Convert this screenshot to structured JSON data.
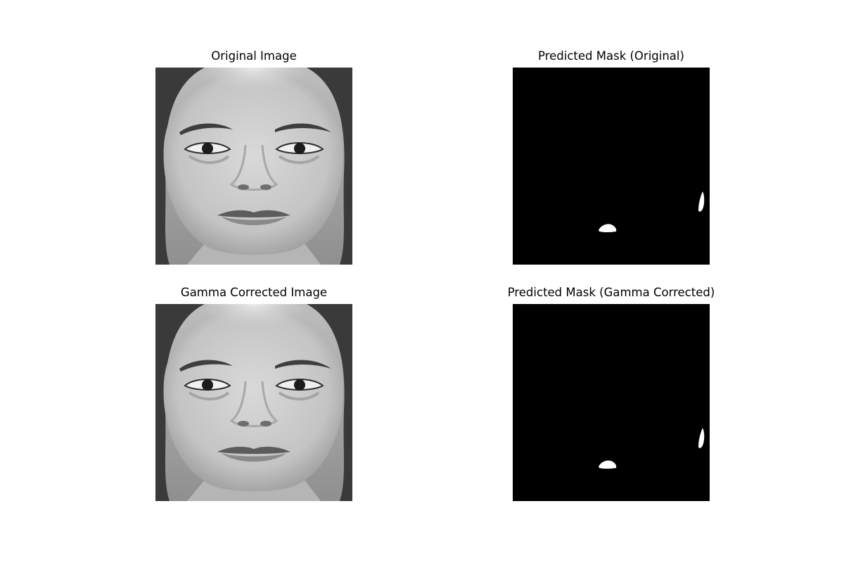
{
  "panels": [
    {
      "title": "Original Image",
      "kind": "face-photo",
      "grayscale": true
    },
    {
      "title": "Predicted Mask (Original)",
      "kind": "binary-mask",
      "background": "#000000",
      "foreground": "#ffffff"
    },
    {
      "title": "Gamma Corrected Image",
      "kind": "face-photo",
      "grayscale": true
    },
    {
      "title": "Predicted Mask (Gamma Corrected)",
      "kind": "binary-mask",
      "background": "#000000",
      "foreground": "#ffffff"
    }
  ]
}
